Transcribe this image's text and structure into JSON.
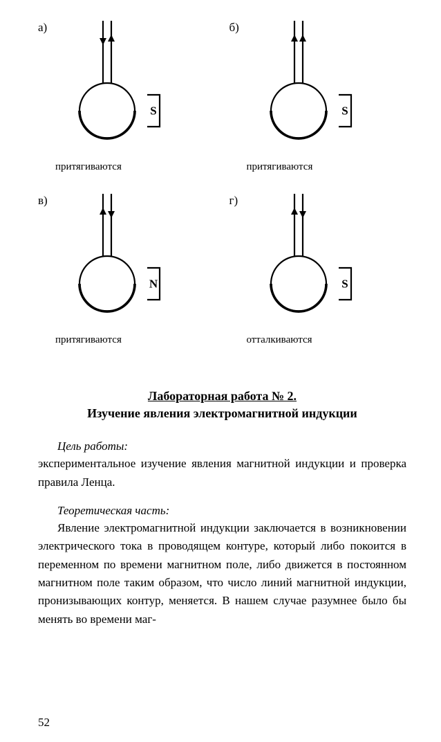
{
  "diagrams": {
    "stroke_color": "#000000",
    "stroke_width": 2.2,
    "circle_radius": 40,
    "magnet_width": 18,
    "magnet_height": 46,
    "font_family": "Times New Roman",
    "label_fontsize": 17,
    "caption_fontsize": 15,
    "cells": [
      {
        "label": "а)",
        "left_arrow_dir": "down",
        "right_arrow_dir": "up",
        "pole": "S",
        "caption": "притягиваются"
      },
      {
        "label": "б)",
        "left_arrow_dir": "up",
        "right_arrow_dir": "up",
        "pole": "S",
        "caption": "притягиваются"
      },
      {
        "label": "в)",
        "left_arrow_dir": "up",
        "right_arrow_dir": "down",
        "pole": "N",
        "caption": "притягиваются"
      },
      {
        "label": "г)",
        "left_arrow_dir": "up",
        "right_arrow_dir": "down",
        "pole": "S",
        "caption": "отталкиваются"
      }
    ]
  },
  "heading_line1": "Лабораторная работа № 2.",
  "heading_line2": "Изучение явления электромагнитной индукции",
  "goal_label": "Цель работы",
  "goal_text": "экспериментальное изучение явления магнитной индукции и проверка правила Ленца.",
  "theory_label": "Теоретическая часть",
  "theory_text": "Явление электромагнитной индукции заключается в возникновении электрического тока в проводящем контуре, который либо покоится в переменном по времени магнитном поле, либо движется в постоянном магнитном поле таким образом, что число линий магнитной индукции, пронизывающих контур, меняется. В нашем случае разумнее было бы менять во времени маг-",
  "page_number": "52"
}
